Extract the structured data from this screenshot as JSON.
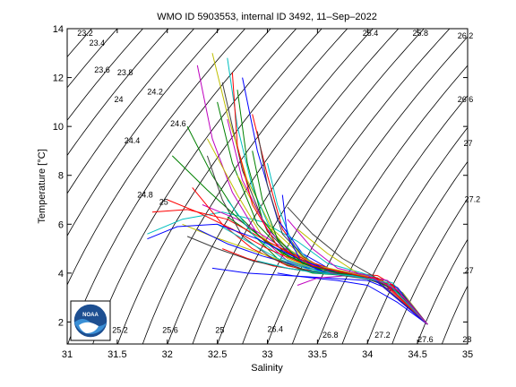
{
  "chart_data": {
    "type": "line",
    "title": "WMO ID 5903553, internal ID 3492, 11–Sep–2022",
    "xlabel": "Salinity",
    "ylabel": "Temperature [°C]",
    "xlim": [
      31,
      35
    ],
    "ylim": [
      1.1,
      14
    ],
    "x_ticks": [
      "31",
      "31.5",
      "32",
      "32.5",
      "33",
      "33.5",
      "34",
      "34.5",
      "35"
    ],
    "y_ticks": [
      "2",
      "4",
      "6",
      "8",
      "10",
      "12",
      "14"
    ],
    "grid": false,
    "density_contours": [
      23.0,
      23.2,
      23.4,
      23.6,
      23.8,
      24.0,
      24.2,
      24.4,
      24.6,
      24.8,
      25.0,
      25.2,
      25.4,
      25.6,
      25.8,
      26.0,
      26.2,
      26.4,
      26.6,
      26.8,
      27.0,
      27.2,
      27.4,
      27.6,
      27.8,
      28.0
    ],
    "density_labels": [
      {
        "text": "23.2",
        "s": 31.1,
        "t": 13.7
      },
      {
        "text": "23.4",
        "s": 31.22,
        "t": 13.3
      },
      {
        "text": "23.6",
        "s": 31.27,
        "t": 12.2
      },
      {
        "text": "23.8",
        "s": 31.5,
        "t": 12.1
      },
      {
        "text": "24",
        "s": 31.47,
        "t": 11.0
      },
      {
        "text": "24.2",
        "s": 31.8,
        "t": 11.3
      },
      {
        "text": "24.4",
        "s": 31.57,
        "t": 9.3
      },
      {
        "text": "24.6",
        "s": 32.03,
        "t": 10.0
      },
      {
        "text": "24.8",
        "s": 31.7,
        "t": 7.1
      },
      {
        "text": "25",
        "s": 31.92,
        "t": 6.8
      },
      {
        "text": "25.4",
        "s": 33.95,
        "t": 13.7
      },
      {
        "text": "25.8",
        "s": 34.45,
        "t": 13.7
      },
      {
        "text": "26.2",
        "s": 34.9,
        "t": 13.6
      },
      {
        "text": "26.6",
        "s": 34.9,
        "t": 11.0
      },
      {
        "text": "27",
        "s": 34.96,
        "t": 9.2
      },
      {
        "text": "27.2",
        "s": 34.97,
        "t": 6.9
      },
      {
        "text": "27",
        "s": 34.97,
        "t": 4.0
      },
      {
        "text": "25.2",
        "s": 31.45,
        "t": 1.55
      },
      {
        "text": "25.6",
        "s": 31.95,
        "t": 1.55
      },
      {
        "text": "25",
        "s": 32.48,
        "t": 1.55
      },
      {
        "text": "26.4",
        "s": 33.0,
        "t": 1.6
      },
      {
        "text": "26.8",
        "s": 33.55,
        "t": 1.35
      },
      {
        "text": "27.2",
        "s": 34.07,
        "t": 1.35
      },
      {
        "text": "27.6",
        "s": 34.5,
        "t": 1.17
      },
      {
        "text": "28",
        "s": 34.95,
        "t": 1.17
      }
    ],
    "series": [
      {
        "color": "#0000ff",
        "s": [
          33.1,
          33.25,
          33.45,
          33.7,
          34.0,
          34.3,
          34.6
        ],
        "t": [
          4.0,
          3.9,
          3.8,
          3.7,
          3.5,
          2.8,
          1.9
        ]
      },
      {
        "color": "#008000",
        "s": [
          32.6,
          32.85,
          33.15,
          33.45,
          33.8,
          34.1,
          34.35,
          34.6
        ],
        "t": [
          6.3,
          5.6,
          4.4,
          4.0,
          3.9,
          3.7,
          3.2,
          1.9
        ]
      },
      {
        "color": "#ff0000",
        "s": [
          32.85,
          33.0,
          33.15,
          33.35,
          33.55,
          33.85,
          34.1,
          34.3,
          34.6
        ],
        "t": [
          10.5,
          8.0,
          5.8,
          4.7,
          4.2,
          4.0,
          3.9,
          3.4,
          1.9
        ]
      },
      {
        "color": "#00bfbf",
        "s": [
          31.8,
          32.15,
          32.55,
          32.95,
          33.3,
          33.6,
          33.95,
          34.25,
          34.6
        ],
        "t": [
          5.6,
          6.2,
          6.5,
          6.1,
          5.3,
          4.4,
          4.0,
          3.6,
          1.9
        ]
      },
      {
        "color": "#bf00bf",
        "s": [
          32.3,
          32.45,
          32.65,
          32.9,
          33.2,
          33.5,
          33.85,
          34.2,
          34.6
        ],
        "t": [
          12.5,
          9.5,
          7.3,
          5.6,
          4.5,
          4.1,
          4.0,
          3.7,
          1.9
        ]
      },
      {
        "color": "#bfbf00",
        "s": [
          32.4,
          32.7,
          32.95,
          33.2,
          33.5,
          33.8,
          34.1,
          34.35,
          34.6
        ],
        "t": [
          9.5,
          7.2,
          5.5,
          4.6,
          4.1,
          3.9,
          3.8,
          3.2,
          1.9
        ]
      },
      {
        "color": "#404040",
        "s": [
          32.55,
          32.75,
          33.0,
          33.3,
          33.6,
          33.95,
          34.25,
          34.6
        ],
        "t": [
          11.8,
          8.2,
          5.7,
          4.5,
          4.0,
          3.9,
          3.5,
          1.9
        ]
      },
      {
        "color": "#0000ff",
        "s": [
          32.75,
          32.9,
          33.1,
          33.35,
          33.65,
          34.0,
          34.3,
          34.6
        ],
        "t": [
          12.0,
          9.0,
          6.2,
          4.8,
          4.1,
          3.9,
          3.4,
          1.9
        ]
      },
      {
        "color": "#008000",
        "s": [
          32.2,
          32.45,
          32.7,
          33.0,
          33.35,
          33.7,
          34.05,
          34.35,
          34.6
        ],
        "t": [
          10.0,
          8.0,
          6.4,
          5.2,
          4.4,
          4.0,
          3.8,
          3.1,
          1.9
        ]
      },
      {
        "color": "#ff0000",
        "s": [
          32.55,
          32.8,
          33.05,
          33.35,
          33.7,
          34.0,
          34.3,
          34.6
        ],
        "t": [
          5.0,
          4.6,
          4.3,
          4.1,
          4.0,
          3.8,
          3.3,
          1.9
        ]
      },
      {
        "color": "#00bfbf",
        "s": [
          33.0,
          33.1,
          33.25,
          33.45,
          33.75,
          34.1,
          34.35,
          34.6
        ],
        "t": [
          8.5,
          6.8,
          5.2,
          4.4,
          4.0,
          3.8,
          3.1,
          1.9
        ]
      },
      {
        "color": "#bf00bf",
        "s": [
          32.35,
          32.7,
          33.05,
          33.4,
          33.75,
          34.05,
          34.35,
          34.6
        ],
        "t": [
          6.8,
          6.2,
          5.3,
          4.5,
          4.0,
          3.8,
          3.1,
          1.9
        ]
      },
      {
        "color": "#bfbf00",
        "s": [
          32.45,
          32.6,
          32.8,
          33.05,
          33.4,
          33.75,
          34.1,
          34.35,
          34.6
        ],
        "t": [
          13.0,
          10.5,
          7.8,
          5.8,
          4.5,
          4.0,
          3.8,
          3.1,
          1.9
        ]
      },
      {
        "color": "#404040",
        "s": [
          33.2,
          33.45,
          33.75,
          34.05,
          34.35,
          34.6
        ],
        "t": [
          6.7,
          5.6,
          4.6,
          3.9,
          3.1,
          1.9
        ]
      },
      {
        "color": "#0000ff",
        "s": [
          32.45,
          32.8,
          33.2,
          33.6,
          34.0,
          34.3,
          34.6
        ],
        "t": [
          4.2,
          4.0,
          3.9,
          3.8,
          3.7,
          3.2,
          1.9
        ]
      },
      {
        "color": "#008000",
        "s": [
          32.05,
          32.4,
          32.8,
          33.15,
          33.5,
          33.85,
          34.2,
          34.6
        ],
        "t": [
          8.8,
          7.4,
          5.9,
          4.8,
          4.2,
          3.9,
          3.6,
          1.9
        ]
      },
      {
        "color": "#ff0000",
        "s": [
          32.25,
          32.55,
          32.85,
          33.2,
          33.55,
          33.9,
          34.25,
          34.6
        ],
        "t": [
          7.5,
          6.0,
          5.0,
          4.3,
          4.0,
          3.9,
          3.5,
          1.9
        ]
      },
      {
        "color": "#00bfbf",
        "s": [
          32.6,
          32.7,
          32.85,
          33.05,
          33.35,
          33.7,
          34.05,
          34.35,
          34.6
        ],
        "t": [
          12.8,
          10.0,
          7.5,
          5.6,
          4.5,
          4.0,
          3.8,
          3.1,
          1.9
        ]
      },
      {
        "color": "#bf00bf",
        "s": [
          33.05,
          33.3,
          33.6,
          33.95,
          34.3,
          34.6
        ],
        "t": [
          5.2,
          4.6,
          4.1,
          3.9,
          3.3,
          1.9
        ]
      },
      {
        "color": "#bfbf00",
        "s": [
          32.15,
          32.45,
          32.8,
          33.15,
          33.5,
          33.85,
          34.2,
          34.6
        ],
        "t": [
          6.0,
          5.5,
          5.0,
          4.5,
          4.1,
          3.9,
          3.6,
          1.9
        ]
      },
      {
        "color": "#404040",
        "s": [
          32.9,
          33.0,
          33.15,
          33.4,
          33.7,
          34.05,
          34.35,
          34.6
        ],
        "t": [
          9.8,
          7.6,
          5.6,
          4.5,
          4.0,
          3.8,
          3.1,
          1.9
        ]
      },
      {
        "color": "#0000ff",
        "s": [
          32.3,
          32.6,
          32.95,
          33.3,
          33.65,
          34.0,
          34.3,
          34.6
        ],
        "t": [
          5.8,
          5.2,
          4.7,
          4.3,
          4.0,
          3.8,
          3.3,
          1.9
        ]
      },
      {
        "color": "#008000",
        "s": [
          32.5,
          32.65,
          32.9,
          33.2,
          33.55,
          33.9,
          34.25,
          34.6
        ],
        "t": [
          11.0,
          8.5,
          6.0,
          4.7,
          4.1,
          3.9,
          3.4,
          1.9
        ]
      },
      {
        "color": "#ff0000",
        "s": [
          31.85,
          32.2,
          32.6,
          33.0,
          33.4,
          33.75,
          34.1,
          34.6
        ],
        "t": [
          6.5,
          6.6,
          6.2,
          5.3,
          4.5,
          4.0,
          3.8,
          1.9
        ]
      },
      {
        "color": "#00bfbf",
        "s": [
          32.6,
          32.85,
          33.15,
          33.5,
          33.85,
          34.2,
          34.6
        ],
        "t": [
          7.0,
          5.6,
          4.6,
          4.1,
          3.9,
          3.6,
          1.9
        ]
      },
      {
        "color": "#bf00bf",
        "s": [
          33.3,
          33.5,
          33.8,
          34.1,
          34.4,
          34.6
        ],
        "t": [
          3.5,
          3.8,
          3.9,
          3.7,
          2.9,
          1.9
        ]
      },
      {
        "color": "#bfbf00",
        "s": [
          32.7,
          32.95,
          33.2,
          33.5,
          33.85,
          34.2,
          34.6
        ],
        "t": [
          8.0,
          6.2,
          5.0,
          4.3,
          4.0,
          3.6,
          1.9
        ]
      },
      {
        "color": "#404040",
        "s": [
          32.4,
          32.55,
          32.75,
          33.05,
          33.4,
          33.75,
          34.1,
          34.6
        ],
        "t": [
          8.8,
          7.0,
          5.5,
          4.6,
          4.1,
          3.9,
          3.7,
          1.9
        ]
      },
      {
        "color": "#0000ff",
        "s": [
          33.15,
          33.2,
          33.35,
          33.6,
          33.9,
          34.2,
          34.6
        ],
        "t": [
          7.2,
          5.5,
          4.4,
          4.0,
          3.9,
          3.6,
          1.9
        ]
      },
      {
        "color": "#008000",
        "s": [
          32.7,
          32.8,
          32.95,
          33.2,
          33.55,
          33.9,
          34.25,
          34.6
        ],
        "t": [
          11.5,
          8.5,
          6.2,
          4.8,
          4.2,
          3.9,
          3.4,
          1.9
        ]
      },
      {
        "color": "#ff0000",
        "s": [
          32.0,
          32.3,
          32.65,
          33.0,
          33.35,
          33.7,
          34.05,
          34.6
        ],
        "t": [
          7.0,
          6.5,
          5.8,
          5.0,
          4.4,
          4.0,
          3.8,
          1.9
        ]
      },
      {
        "color": "#00bfbf",
        "s": [
          32.5,
          32.8,
          33.1,
          33.45,
          33.8,
          34.15,
          34.6
        ],
        "t": [
          6.0,
          5.3,
          4.6,
          4.1,
          3.9,
          3.7,
          1.9
        ]
      },
      {
        "color": "#bf00bf",
        "s": [
          32.6,
          32.75,
          33.0,
          33.3,
          33.65,
          34.0,
          34.3,
          34.6
        ],
        "t": [
          10.3,
          7.8,
          5.8,
          4.6,
          4.0,
          3.8,
          3.3,
          1.9
        ]
      },
      {
        "color": "#bfbf00",
        "s": [
          33.3,
          33.6,
          33.9,
          34.2,
          34.6
        ],
        "t": [
          5.8,
          4.8,
          4.0,
          3.6,
          1.9
        ]
      },
      {
        "color": "#404040",
        "s": [
          32.2,
          32.5,
          32.85,
          33.2,
          33.55,
          33.9,
          34.25,
          34.6
        ],
        "t": [
          5.5,
          5.0,
          4.5,
          4.2,
          4.0,
          3.9,
          3.4,
          1.9
        ]
      },
      {
        "color": "#0000ff",
        "s": [
          31.8,
          32.1,
          32.5,
          32.9,
          33.3,
          33.7,
          34.05,
          34.6
        ],
        "t": [
          5.4,
          5.9,
          6.0,
          5.4,
          4.6,
          4.0,
          3.8,
          1.9
        ]
      },
      {
        "color": "#008000",
        "s": [
          32.85,
          32.95,
          33.1,
          33.35,
          33.7,
          34.05,
          34.35,
          34.6
        ],
        "t": [
          9.0,
          7.0,
          5.4,
          4.4,
          4.0,
          3.8,
          3.1,
          1.9
        ]
      },
      {
        "color": "#ff0000",
        "s": [
          32.65,
          32.7,
          32.85,
          33.1,
          33.45,
          33.8,
          34.15,
          34.6
        ],
        "t": [
          12.2,
          9.2,
          6.8,
          5.1,
          4.3,
          4.0,
          3.7,
          1.9
        ]
      },
      {
        "color": "#00bfbf",
        "s": [
          32.9,
          33.2,
          33.5,
          33.85,
          34.2,
          34.6
        ],
        "t": [
          4.5,
          4.2,
          4.0,
          3.9,
          3.6,
          1.9
        ]
      },
      {
        "color": "#bf00bf",
        "s": [
          33.2,
          33.45,
          33.7,
          34.0,
          34.3,
          34.6
        ],
        "t": [
          6.2,
          5.0,
          4.2,
          3.9,
          3.3,
          1.9
        ]
      }
    ]
  }
}
